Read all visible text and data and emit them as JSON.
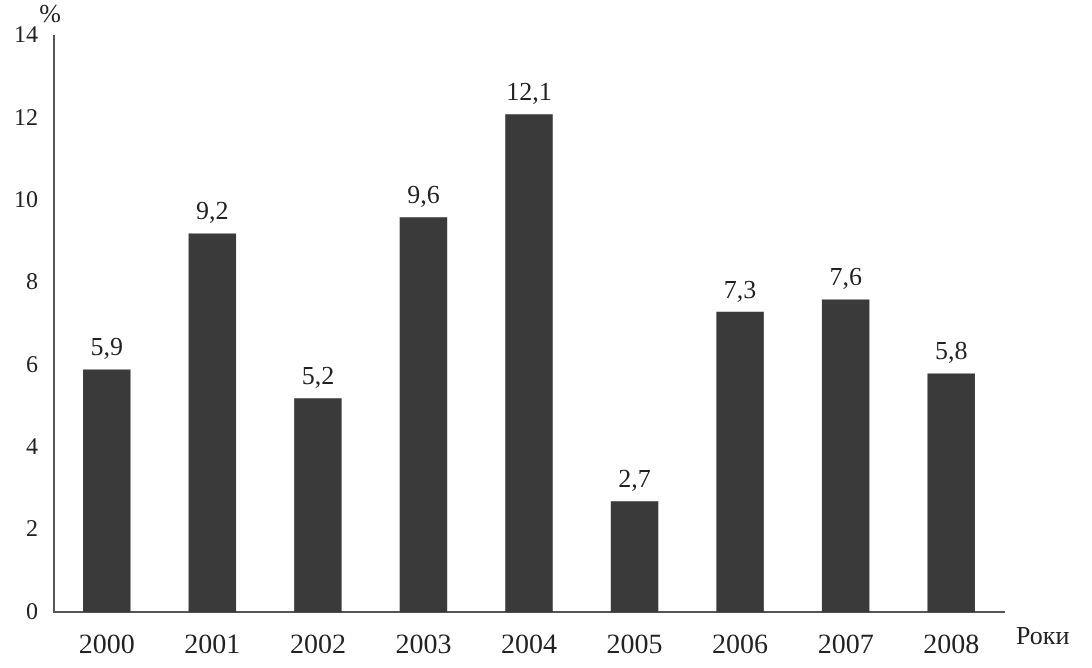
{
  "chart_data": {
    "type": "bar",
    "ylabel": "%",
    "xlabel": "Роки",
    "categories": [
      "2000",
      "2001",
      "2002",
      "2003",
      "2004",
      "2005",
      "2006",
      "2007",
      "2008"
    ],
    "values": [
      5.9,
      9.2,
      5.2,
      9.6,
      12.1,
      2.7,
      7.3,
      7.6,
      5.8
    ],
    "value_labels": [
      "5,9",
      "9,2",
      "5,2",
      "9,6",
      "12,1",
      "2,7",
      "7,3",
      "7,6",
      "5,8"
    ],
    "color": "#3a3a3a",
    "ylim": [
      0,
      14
    ],
    "yticks": [
      0,
      2,
      4,
      6,
      8,
      10,
      12,
      14
    ],
    "grid": false,
    "legend": false
  }
}
